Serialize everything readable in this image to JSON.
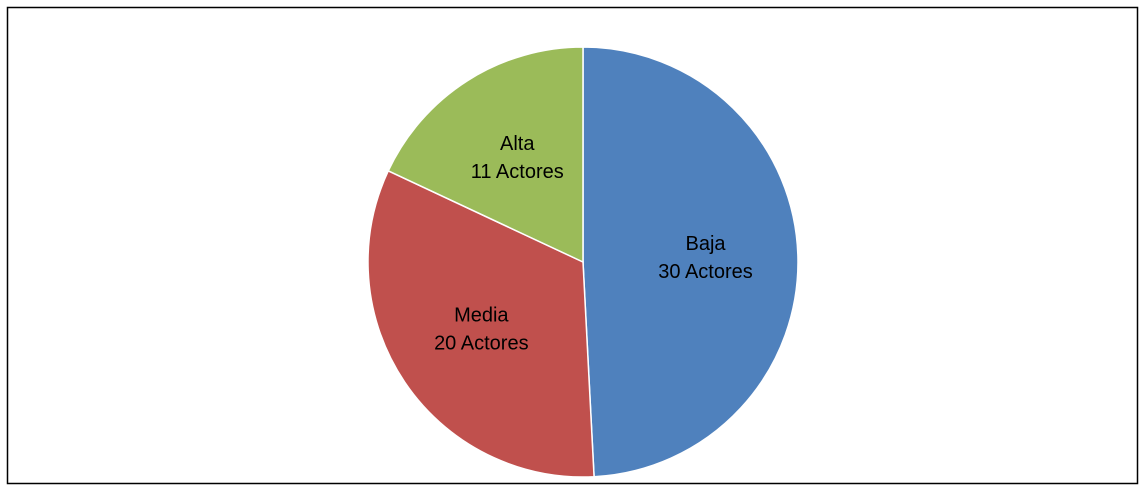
{
  "chart_data": {
    "type": "pie",
    "categories": [
      "Baja",
      "Media",
      "Alta"
    ],
    "values": [
      30,
      20,
      11
    ],
    "value_labels": [
      "30 Actores",
      "20 Actores",
      "11 Actores"
    ],
    "colors": [
      "#4f81bd",
      "#c0504d",
      "#9bbb59"
    ]
  }
}
